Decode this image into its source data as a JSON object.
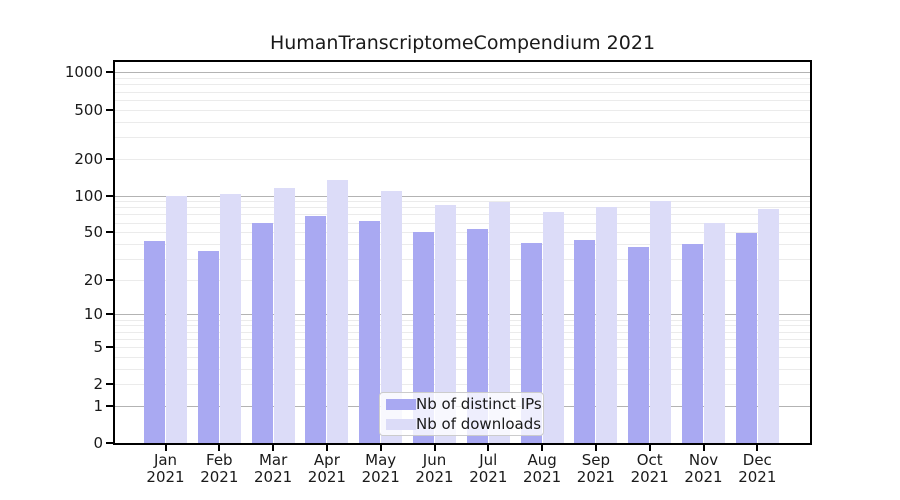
{
  "title": "HumanTranscriptomeCompendium 2021",
  "colors": {
    "ips_bar": "#a9a9f2",
    "downloads_bar": "#dcdcf8",
    "grid_major": "#b3b3b3",
    "grid_minor": "#ebebeb",
    "spine": "#000000",
    "legend_border": "#cccccc"
  },
  "chart_data": {
    "type": "bar",
    "title": "HumanTranscriptomeCompendium 2021",
    "categories": [
      "Jan 2021",
      "Feb 2021",
      "Mar 2021",
      "Apr 2021",
      "May 2021",
      "Jun 2021",
      "Jul 2021",
      "Aug 2021",
      "Sep 2021",
      "Oct 2021",
      "Nov 2021",
      "Dec 2021"
    ],
    "series": [
      {
        "name": "Nb of distinct IPs",
        "color": "#a9a9f2",
        "values": [
          42,
          35,
          60,
          68,
          62,
          50,
          53,
          41,
          43,
          38,
          40,
          49
        ]
      },
      {
        "name": "Nb of downloads",
        "color": "#dcdcf8",
        "values": [
          100,
          103,
          115,
          134,
          108,
          83,
          89,
          73,
          81,
          90,
          60,
          77
        ]
      }
    ],
    "xlabel": "",
    "ylabel": "",
    "yscale": "log1p",
    "yticks": [
      0,
      1,
      2,
      5,
      10,
      20,
      50,
      100,
      200,
      500,
      1000
    ],
    "ylim": [
      0,
      1200
    ],
    "grid": "horizontal",
    "legend_position": "inside lower-center"
  }
}
